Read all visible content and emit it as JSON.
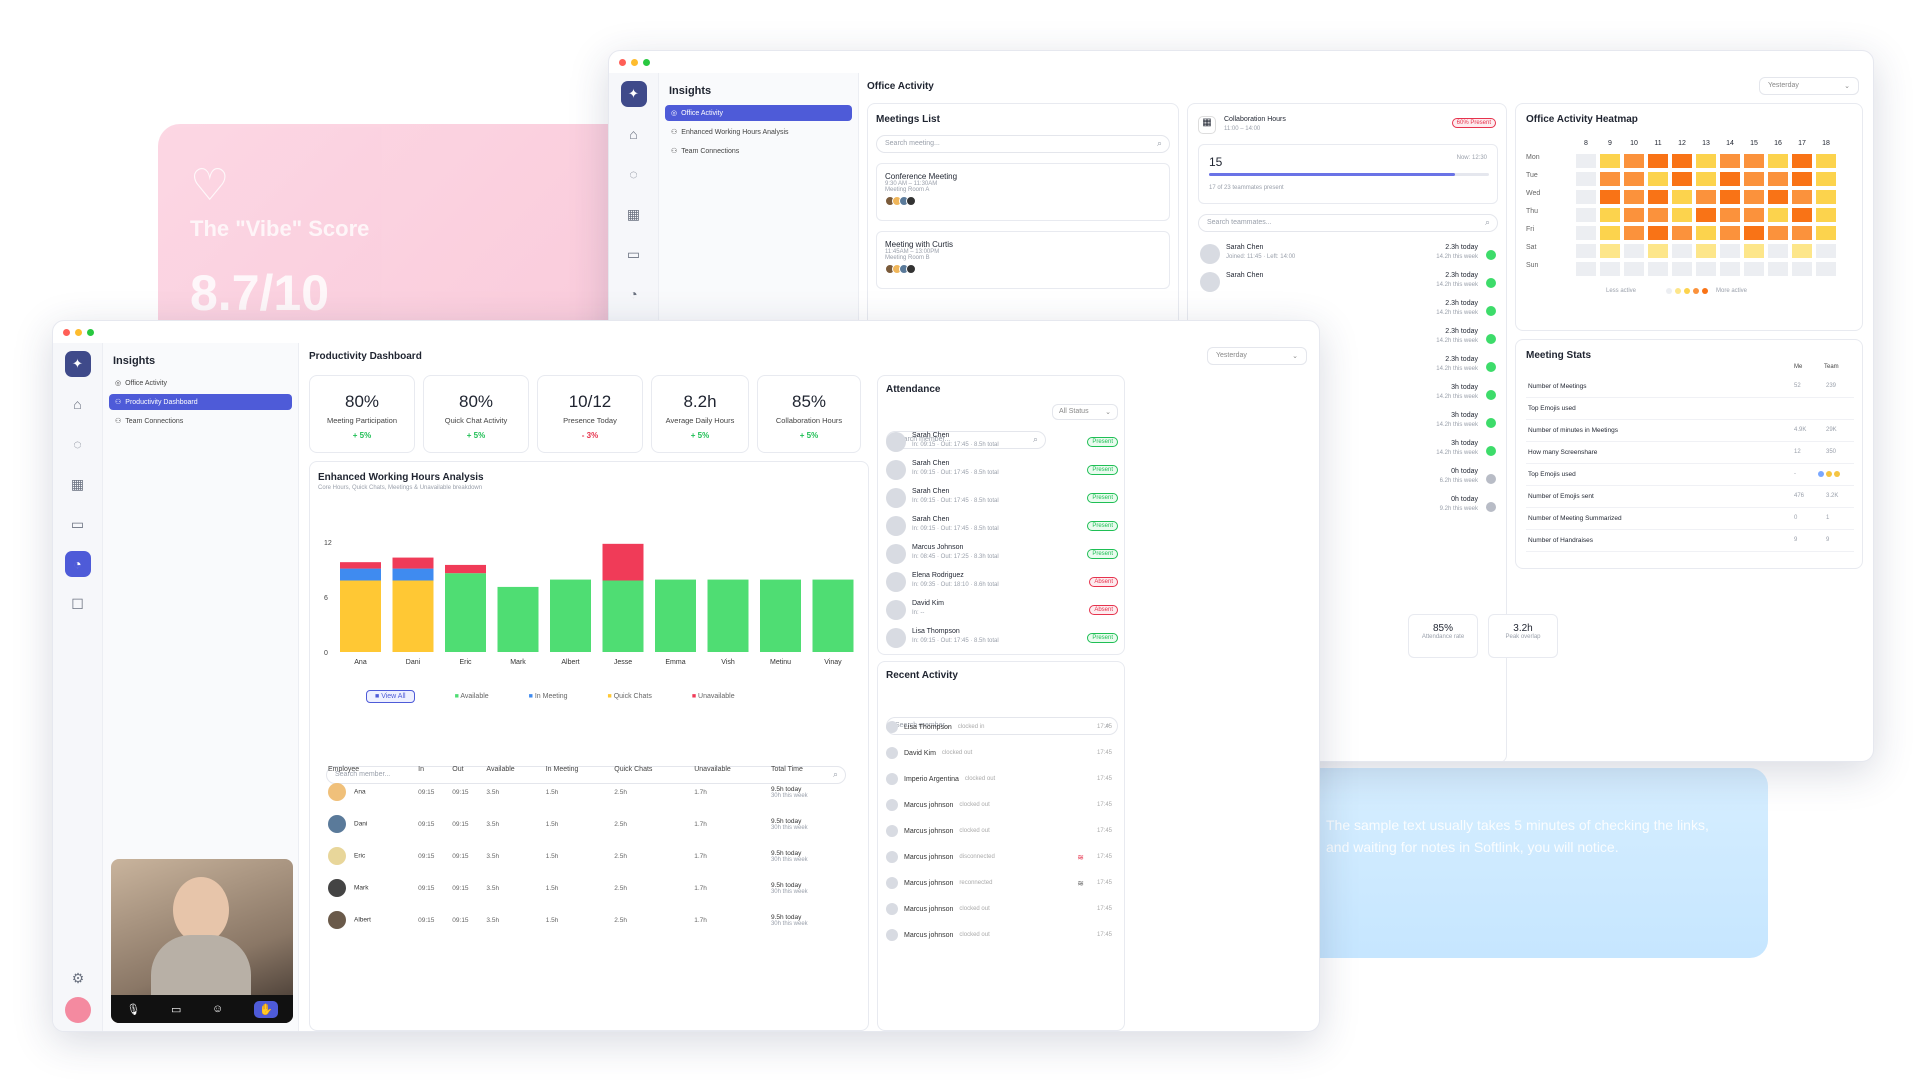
{
  "vibe_card": {
    "title": "The \"Vibe\" Score",
    "score": "8.7/10"
  },
  "blue_card": {
    "text": "The sample text usually takes 5 minutes of checking the links, and waiting for notes in Softlink, you will notice."
  },
  "back_window": {
    "nav_title": "Insights",
    "nav_items": [
      "Office Activity",
      "Enhanced Working Hours Analysis",
      "Team Connections"
    ],
    "page_title": "Office Activity",
    "period": "Yesterday",
    "meetings": {
      "title": "Meetings List",
      "search_placeholder": "Search meeting...",
      "items": [
        {
          "name": "Conference Meeting",
          "time": "9:30 AM – 11:30AM",
          "room": "Meeting Room A"
        },
        {
          "name": "Meeting with Curtis",
          "time": "11:45AM – 13:00PM",
          "room": "Meeting Room B"
        }
      ]
    },
    "collab": {
      "title": "Collaboration Hours",
      "time": "11:00 – 14:00",
      "badge": "60% Present",
      "count": "15",
      "now": "Now: 12:30",
      "sub": "17 of 23 teammates present",
      "progress": 0.88,
      "search_placeholder": "Search teammates..."
    },
    "teammates": [
      {
        "name": "Sarah Chen",
        "sub": "Joined: 11:45 · Left: 14:00",
        "today": "2.3h today",
        "week": "14.2h this week",
        "online": true
      },
      {
        "name": "Sarah Chen",
        "sub": "",
        "today": "2.3h today",
        "week": "14.2h this week",
        "online": true
      },
      {
        "name": "",
        "sub": "",
        "today": "2.3h today",
        "week": "14.2h this week",
        "online": true
      },
      {
        "name": "",
        "sub": "",
        "today": "2.3h today",
        "week": "14.2h this week",
        "online": true
      },
      {
        "name": "",
        "sub": "",
        "today": "2.3h today",
        "week": "14.2h this week",
        "online": true
      },
      {
        "name": "",
        "sub": "",
        "today": "3h today",
        "week": "14.2h this week",
        "online": true
      },
      {
        "name": "",
        "sub": "",
        "today": "3h today",
        "week": "14.2h this week",
        "online": true
      },
      {
        "name": "",
        "sub": "",
        "today": "3h today",
        "week": "14.2h this week",
        "online": true
      },
      {
        "name": "",
        "sub": "",
        "today": "0h today",
        "week": "6.2h this week",
        "online": false
      },
      {
        "name": "",
        "sub": "",
        "today": "0h today",
        "week": "9.2h this week",
        "online": false
      }
    ],
    "mini_stats": [
      {
        "value": "85%",
        "label": "Attendance rate"
      },
      {
        "value": "3.2h",
        "label": "Peak overlap"
      }
    ],
    "heatmap": {
      "title": "Office Activity Heatmap",
      "hours": [
        "8",
        "9",
        "10",
        "11",
        "12",
        "13",
        "14",
        "15",
        "16",
        "17",
        "18"
      ],
      "days": [
        "Mon",
        "Tue",
        "Wed",
        "Thu",
        "Fri",
        "Sat",
        "Sun"
      ],
      "levels": [
        [
          0,
          2,
          3,
          4,
          4,
          2,
          3,
          3,
          2,
          4,
          2
        ],
        [
          0,
          3,
          3,
          2,
          4,
          2,
          4,
          3,
          3,
          4,
          2
        ],
        [
          0,
          4,
          3,
          4,
          2,
          3,
          4,
          3,
          4,
          3,
          2
        ],
        [
          0,
          2,
          3,
          3,
          2,
          4,
          3,
          3,
          2,
          4,
          2
        ],
        [
          0,
          2,
          3,
          4,
          3,
          2,
          3,
          4,
          3,
          3,
          2
        ],
        [
          0,
          1,
          0,
          1,
          0,
          1,
          0,
          1,
          0,
          1,
          0
        ],
        [
          0,
          0,
          0,
          0,
          0,
          0,
          0,
          0,
          0,
          0,
          0
        ]
      ],
      "legend_low": "Less active",
      "legend_high": "More active"
    },
    "meeting_stats": {
      "title": "Meeting Stats",
      "col_me": "Me",
      "col_team": "Team",
      "rows": [
        {
          "label": "Number of Meetings",
          "me": "52",
          "team": "239"
        },
        {
          "label": "Top Emojis used",
          "me": "",
          "team": ""
        },
        {
          "label": "Number of minutes in Meetings",
          "me": "4.9K",
          "team": "29K"
        },
        {
          "label": "How many Screenshare",
          "me": "12",
          "team": "350"
        },
        {
          "label": "Top Emojis used",
          "me": "-",
          "team": ""
        },
        {
          "label": "Number of Emojis sent",
          "me": "476",
          "team": "3.2K"
        },
        {
          "label": "Number of Meeting Summarized",
          "me": "0",
          "team": "1"
        },
        {
          "label": "Number of Handraises",
          "me": "9",
          "team": "9"
        }
      ]
    }
  },
  "front_window": {
    "nav_title": "Insights",
    "nav_items": [
      "Office Activity",
      "Productivity Dashboard",
      "Team Connections"
    ],
    "page_title": "Productivity Dashboard",
    "period": "Yesterday",
    "kpis": [
      {
        "value": "80%",
        "label": "Meeting Participation",
        "delta": "+ 5%",
        "dir": "up"
      },
      {
        "value": "80%",
        "label": "Quick Chat Activity",
        "delta": "+ 5%",
        "dir": "up"
      },
      {
        "value": "10/12",
        "label": "Presence Today",
        "delta": "- 3%",
        "dir": "down"
      },
      {
        "value": "8.2h",
        "label": "Average Daily Hours",
        "delta": "+ 5%",
        "dir": "up"
      },
      {
        "value": "85%",
        "label": "Collaboration Hours",
        "delta": "+ 5%",
        "dir": "up"
      }
    ],
    "chart_title": "Enhanced Working Hours Analysis",
    "chart_subtitle": "Core Hours, Quick Chats, Meetings & Unavailable breakdown",
    "legend": {
      "view_all": "View All",
      "available": "Available",
      "in_meeting": "In Meeting",
      "quick_chats": "Quick Chats",
      "unavailable": "Unavailable"
    },
    "search_placeholder": "Search member...",
    "table": {
      "headers": [
        "Employee",
        "In",
        "Out",
        "Available",
        "In Meeting",
        "Quick Chats",
        "Unavailable",
        "Total Time"
      ],
      "rows": [
        {
          "name": "Ana",
          "in": "09:15",
          "out": "09:15",
          "avail": "3.5h",
          "meet": "1.5h",
          "chat": "2.5h",
          "unav": "1.7h",
          "total": "9.5h today",
          "week": "30h this week"
        },
        {
          "name": "Dani",
          "in": "09:15",
          "out": "09:15",
          "avail": "3.5h",
          "meet": "1.5h",
          "chat": "2.5h",
          "unav": "1.7h",
          "total": "9.5h today",
          "week": "30h this week"
        },
        {
          "name": "Eric",
          "in": "09:15",
          "out": "09:15",
          "avail": "3.5h",
          "meet": "1.5h",
          "chat": "2.5h",
          "unav": "1.7h",
          "total": "9.5h today",
          "week": "30h this week"
        },
        {
          "name": "Mark",
          "in": "09:15",
          "out": "09:15",
          "avail": "3.5h",
          "meet": "1.5h",
          "chat": "2.5h",
          "unav": "1.7h",
          "total": "9.5h today",
          "week": "30h this week"
        },
        {
          "name": "Albert",
          "in": "09:15",
          "out": "09:15",
          "avail": "3.5h",
          "meet": "1.5h",
          "chat": "2.5h",
          "unav": "1.7h",
          "total": "9.5h today",
          "week": "30h this week"
        }
      ]
    },
    "attendance": {
      "title": "Attendance",
      "search_placeholder": "Search member...",
      "filter": "All Status",
      "rows": [
        {
          "name": "Sarah Chen",
          "sub": "In: 09:15 · Out: 17:45 · 8.5h total",
          "status": "Present"
        },
        {
          "name": "Sarah Chen",
          "sub": "In: 09:15 · Out: 17:45 · 8.5h total",
          "status": "Present"
        },
        {
          "name": "Sarah Chen",
          "sub": "In: 09:15 · Out: 17:45 · 8.5h total",
          "status": "Present"
        },
        {
          "name": "Sarah Chen",
          "sub": "In: 09:15 · Out: 17:45 · 8.5h total",
          "status": "Present"
        },
        {
          "name": "Marcus Johnson",
          "sub": "In: 08:45 · Out: 17:25 · 8.3h total",
          "status": "Present"
        },
        {
          "name": "Elena Rodriguez",
          "sub": "In: 09:35 · Out: 18:10 · 8.6h total",
          "status": "Absent"
        },
        {
          "name": "David Kim",
          "sub": "In: --",
          "status": "Absent"
        },
        {
          "name": "Lisa Thompson",
          "sub": "In: 09:15 · Out: 17:45 · 8.5h total",
          "status": "Present"
        }
      ]
    },
    "recent": {
      "title": "Recent Activity",
      "search_placeholder": "Search member...",
      "rows": [
        {
          "name": "Lisa Thompson",
          "action": "clocked in",
          "time": "17:45"
        },
        {
          "name": "David Kim",
          "action": "clocked out",
          "time": "17:45"
        },
        {
          "name": "Imperio Argentina",
          "action": "clocked out",
          "time": "17:45"
        },
        {
          "name": "Marcus johnson",
          "action": "clocked out",
          "time": "17:45"
        },
        {
          "name": "Marcus johnson",
          "action": "clocked out",
          "time": "17:45"
        },
        {
          "name": "Marcus johnson",
          "action": "disconnected",
          "time": "17:45"
        },
        {
          "name": "Marcus johnson",
          "action": "reconnected",
          "time": "17:45"
        },
        {
          "name": "Marcus johnson",
          "action": "clocked out",
          "time": "17:45"
        },
        {
          "name": "Marcus johnson",
          "action": "clocked out",
          "time": "17:45"
        }
      ]
    }
  },
  "chart_data": {
    "type": "bar",
    "stacked": true,
    "categories": [
      "Ana",
      "Dani",
      "Eric",
      "Mark",
      "Albert",
      "Jesse",
      "Emma",
      "Vish",
      "Metinu",
      "Vinay"
    ],
    "ylim": [
      0,
      12
    ],
    "yticks": [
      "0",
      "6",
      "12"
    ],
    "series": [
      {
        "name": "Quick Chats",
        "color": "#ffc834",
        "values": [
          7.8,
          7.8,
          0,
          0,
          0,
          0,
          0,
          0,
          0,
          0
        ]
      },
      {
        "name": "Available",
        "color": "#4fdd73",
        "values": [
          0,
          0,
          8.6,
          7.1,
          7.9,
          7.8,
          7.9,
          7.9,
          7.9,
          7.9
        ]
      },
      {
        "name": "In Meeting",
        "color": "#3f8bf0",
        "values": [
          1.3,
          1.3,
          0,
          0,
          0,
          0,
          0,
          0,
          0,
          0
        ]
      },
      {
        "name": "Unavailable",
        "color": "#f03b58",
        "values": [
          0.7,
          1.2,
          0.9,
          0,
          0,
          4.0,
          0,
          0,
          0,
          0
        ]
      }
    ]
  }
}
